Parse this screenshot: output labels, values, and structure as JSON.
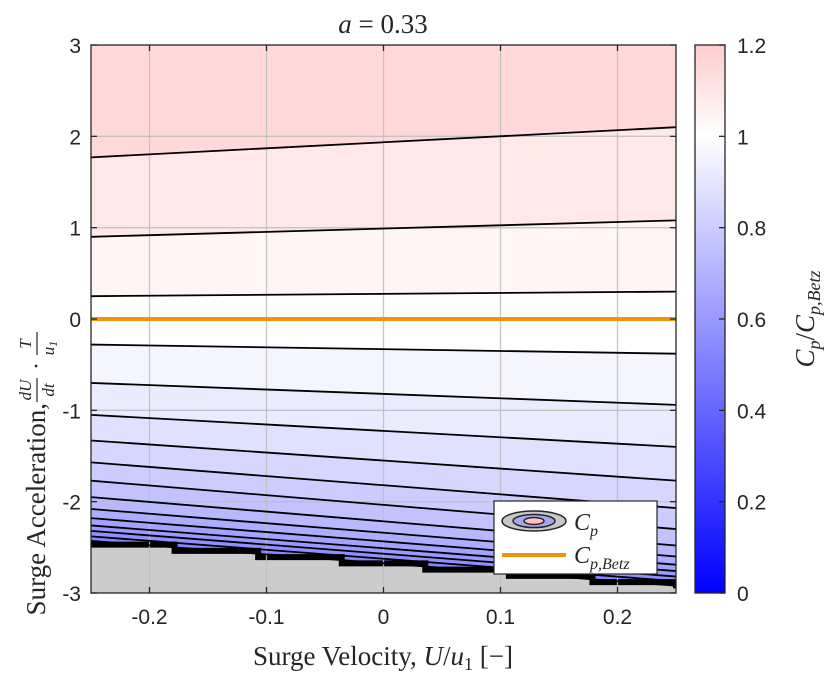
{
  "chart_data": {
    "type": "heatmap",
    "title": "a = 0.33",
    "title_parts": {
      "variable": "a",
      "equals": " = ",
      "value": "0.33"
    },
    "xlabel": "Surge Velocity, U/u₁ [−]",
    "xlabel_parts": {
      "prefix": "Surge Velocity, ",
      "var": "U",
      "slash": "/",
      "base": "u",
      "sub": "1",
      "suffix": " [−]"
    },
    "ylabel": "Surge Acceleration, (dU/dt)·(T/u₁)",
    "ylabel_parts": {
      "prefix": "Surge Acceleration, ",
      "frac1_num": "dU",
      "frac1_den": "dt",
      "dot": "·",
      "frac2_num": "T",
      "frac2_den_base": "u",
      "frac2_den_sub": "1"
    },
    "colorbar_label": "C_p / C_p,Betz",
    "colorbar_label_parts": {
      "c1": "C",
      "s1": "p",
      "slash": "/",
      "c2": "C",
      "s2": "p,Betz"
    },
    "xlim": [
      -0.25,
      0.25
    ],
    "ylim": [
      -3,
      3
    ],
    "clim": [
      0,
      1.2
    ],
    "x_ticks": [
      -0.2,
      -0.1,
      0,
      0.1,
      0.2
    ],
    "x_tick_labels": [
      "-0.2",
      "-0.1",
      "0",
      "0.1",
      "0.2"
    ],
    "y_ticks": [
      -3,
      -2,
      -1,
      0,
      1,
      2,
      3
    ],
    "y_tick_labels": [
      "-3",
      "-2",
      "-1",
      "0",
      "1",
      "2",
      "3"
    ],
    "c_ticks": [
      0,
      0.2,
      0.4,
      0.6,
      0.8,
      1,
      1.2
    ],
    "c_tick_labels": [
      "0",
      "0.2",
      "0.4",
      "0.6",
      "0.8",
      "1",
      "1.2"
    ],
    "colormap": {
      "low": "#0000ff",
      "mid": "#ffffff",
      "high": "#ffcccc"
    },
    "undefined_region_color": "#cccccc",
    "contours": [
      {
        "y_left": 1.77,
        "y_right": 2.1,
        "level": 1.12
      },
      {
        "y_left": 0.9,
        "y_right": 1.08,
        "level": 1.06
      },
      {
        "y_left": 0.25,
        "y_right": 0.3,
        "level": 1.02
      },
      {
        "y_left": -0.28,
        "y_right": -0.38,
        "level": 0.98
      },
      {
        "y_left": -0.7,
        "y_right": -0.94,
        "level": 0.94
      },
      {
        "y_left": -1.05,
        "y_right": -1.4,
        "level": 0.9
      },
      {
        "y_left": -1.33,
        "y_right": -1.77,
        "level": 0.86
      },
      {
        "y_left": -1.57,
        "y_right": -2.07,
        "level": 0.82
      },
      {
        "y_left": -1.77,
        "y_right": -2.3,
        "level": 0.78
      },
      {
        "y_left": -1.95,
        "y_right": -2.48,
        "level": 0.74
      },
      {
        "y_left": -2.08,
        "y_right": -2.6,
        "level": 0.7
      },
      {
        "y_left": -2.18,
        "y_right": -2.69,
        "level": 0.66
      },
      {
        "y_left": -2.26,
        "y_right": -2.76,
        "level": 0.62
      },
      {
        "y_left": -2.32,
        "y_right": -2.82,
        "level": 0.58
      },
      {
        "y_left": -2.38,
        "y_right": -2.87,
        "level": 0.54
      },
      {
        "y_left": -2.43,
        "y_right": -2.92,
        "level": 0.5
      }
    ],
    "boundary": {
      "y_left": -2.47,
      "y_right": -2.95,
      "steps": 7
    },
    "betz_line": {
      "y": 0,
      "color": "#f0940a"
    },
    "legend": {
      "location": "bottom-right",
      "entries": [
        {
          "key": "cp",
          "base": "C",
          "sub": "p"
        },
        {
          "key": "betz",
          "base": "C",
          "sub": "p,Betz"
        }
      ]
    }
  }
}
